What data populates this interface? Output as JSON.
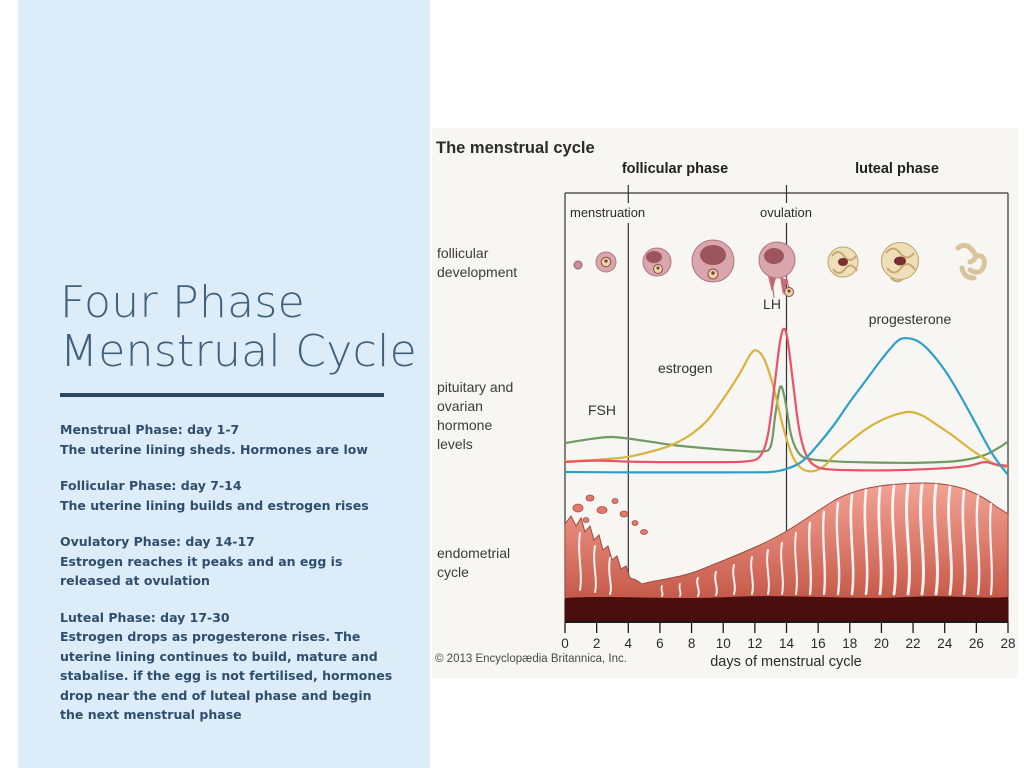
{
  "slide": {
    "panel_color": "#dcecf9",
    "accent_color": "#2c4860",
    "title_color": "#41607c",
    "body_color": "#2f4e6e",
    "title_lines": [
      "Four Phase",
      "Menstrual Cycle"
    ],
    "phases": [
      {
        "heading": "Menstrual Phase: day 1-7",
        "body": "The uterine lining sheds. Hormones are low"
      },
      {
        "heading": "Follicular Phase: day 7-14",
        "body": "The uterine lining builds and estrogen rises"
      },
      {
        "heading": "Ovulatory Phase: day 14-17",
        "body": "Estrogen reaches it peaks and an egg is released at ovulation"
      },
      {
        "heading": "Luteal Phase: day 17-30",
        "body": "Estrogen drops as progesterone rises. The uterine lining continues to build, mature and stabalise. if the egg is not fertilised, hormones drop near the end of luteal phase and begin the next menstrual phase"
      }
    ]
  },
  "diagram": {
    "title": "The menstrual cycle",
    "phase_labels": {
      "follicular": "follicular phase",
      "luteal": "luteal phase"
    },
    "event_labels": {
      "menstruation": "menstruation",
      "ovulation": "ovulation"
    },
    "row_labels": {
      "follicular_development": [
        "follicular",
        "development"
      ],
      "hormones": [
        "pituitary and",
        "ovarian",
        "hormone",
        "levels"
      ],
      "endometrial": [
        "endometrial",
        "cycle"
      ]
    },
    "curve_labels": {
      "fsh": "FSH",
      "estrogen": "estrogen",
      "lh": "LH",
      "progesterone": "progesterone"
    },
    "x_axis_label": "days of menstrual cycle",
    "copyright": "© 2013 Encyclopædia Britannica, Inc."
  },
  "chart_data": [
    {
      "type": "line",
      "title": "pituitary and ovarian hormone levels",
      "xlabel": "days of menstrual cycle",
      "ylabel": "relative hormone level (0-100, unlabeled axis)",
      "x_range": [
        0,
        28
      ],
      "x_ticks": [
        0,
        2,
        4,
        6,
        8,
        10,
        12,
        14,
        16,
        18,
        20,
        22,
        24,
        26,
        28
      ],
      "event_days": {
        "menstruation_span": [
          0,
          4
        ],
        "ovulation": 14,
        "follicular_phase": [
          0,
          14
        ],
        "luteal_phase": [
          14,
          28
        ]
      },
      "grid": false,
      "legend": "inline labels on curves",
      "series": [
        {
          "name": "FSH",
          "color": "#6f9a62",
          "points": [
            [
              0,
              21
            ],
            [
              1.5,
              23.5
            ],
            [
              3,
              25
            ],
            [
              5,
              22.5
            ],
            [
              7,
              19.5
            ],
            [
              9,
              17.5
            ],
            [
              11,
              16
            ],
            [
              12.4,
              15.5
            ],
            [
              13,
              19
            ],
            [
              13.3,
              40
            ],
            [
              13.6,
              58
            ],
            [
              13.9,
              50
            ],
            [
              14.3,
              26
            ],
            [
              14.8,
              14
            ],
            [
              15.5,
              10.5
            ],
            [
              17,
              9
            ],
            [
              19,
              8.3
            ],
            [
              21,
              8
            ],
            [
              23,
              8.2
            ],
            [
              25,
              9.5
            ],
            [
              26.5,
              13
            ],
            [
              27.5,
              18.5
            ],
            [
              28,
              22
            ]
          ]
        },
        {
          "name": "estrogen",
          "color": "#d9b33c",
          "points": [
            [
              0,
              9
            ],
            [
              2,
              10
            ],
            [
              4,
              12
            ],
            [
              6,
              17
            ],
            [
              7,
              21
            ],
            [
              8,
              27
            ],
            [
              9,
              36
            ],
            [
              10,
              50
            ],
            [
              11,
              66
            ],
            [
              11.7,
              79
            ],
            [
              12.1,
              82
            ],
            [
              12.6,
              76
            ],
            [
              13.2,
              57
            ],
            [
              13.8,
              31
            ],
            [
              14.4,
              12
            ],
            [
              15,
              4
            ],
            [
              15.7,
              2.5
            ],
            [
              16.4,
              6
            ],
            [
              17,
              13
            ],
            [
              18,
              22
            ],
            [
              19,
              30
            ],
            [
              20,
              36
            ],
            [
              21,
              40
            ],
            [
              21.8,
              41.5
            ],
            [
              22.6,
              39
            ],
            [
              23.5,
              33
            ],
            [
              24.5,
              26
            ],
            [
              25.5,
              18
            ],
            [
              26.5,
              11
            ],
            [
              27.3,
              6.5
            ],
            [
              28,
              5
            ]
          ]
        },
        {
          "name": "LH",
          "color": "#e8536a",
          "points": [
            [
              0,
              8.5
            ],
            [
              2,
              9.5
            ],
            [
              4,
              8.8
            ],
            [
              6,
              8.5
            ],
            [
              8,
              8.5
            ],
            [
              10,
              8.5
            ],
            [
              11.5,
              9
            ],
            [
              12.3,
              12
            ],
            [
              12.8,
              25
            ],
            [
              13.2,
              55
            ],
            [
              13.55,
              85
            ],
            [
              13.8,
              96
            ],
            [
              14.05,
              90
            ],
            [
              14.4,
              62
            ],
            [
              14.8,
              30
            ],
            [
              15.3,
              12
            ],
            [
              16,
              5
            ],
            [
              17,
              3.5
            ],
            [
              18,
              3.2
            ],
            [
              20,
              3
            ],
            [
              22,
              3.5
            ],
            [
              24,
              4.5
            ],
            [
              25.5,
              6
            ],
            [
              26.5,
              8.5
            ],
            [
              27.2,
              7
            ],
            [
              28,
              6
            ]
          ]
        },
        {
          "name": "progesterone",
          "color": "#2da0c8",
          "points": [
            [
              0,
              2
            ],
            [
              3,
              1.8
            ],
            [
              6,
              1.7
            ],
            [
              9,
              1.7
            ],
            [
              12,
              1.8
            ],
            [
              13,
              2
            ],
            [
              14,
              4
            ],
            [
              15,
              9
            ],
            [
              16,
              20
            ],
            [
              17,
              33
            ],
            [
              18,
              48
            ],
            [
              19,
              62
            ],
            [
              20,
              76
            ],
            [
              21,
              88
            ],
            [
              21.6,
              90
            ],
            [
              22.3,
              88
            ],
            [
              23,
              82
            ],
            [
              24,
              69
            ],
            [
              25,
              52
            ],
            [
              26,
              33
            ],
            [
              27,
              14
            ],
            [
              27.7,
              4
            ],
            [
              28,
              0
            ]
          ]
        }
      ]
    },
    {
      "type": "area",
      "title": "endometrial cycle (relative lining thickness)",
      "x": [
        0,
        2,
        4,
        5,
        6,
        8,
        10,
        12,
        14,
        16,
        18,
        20,
        21,
        22,
        24,
        25,
        26,
        27,
        28
      ],
      "values": [
        70,
        55,
        30,
        28,
        29,
        33,
        38,
        44,
        52,
        60,
        68,
        76,
        79,
        80,
        80,
        79,
        76,
        70,
        66
      ]
    }
  ]
}
